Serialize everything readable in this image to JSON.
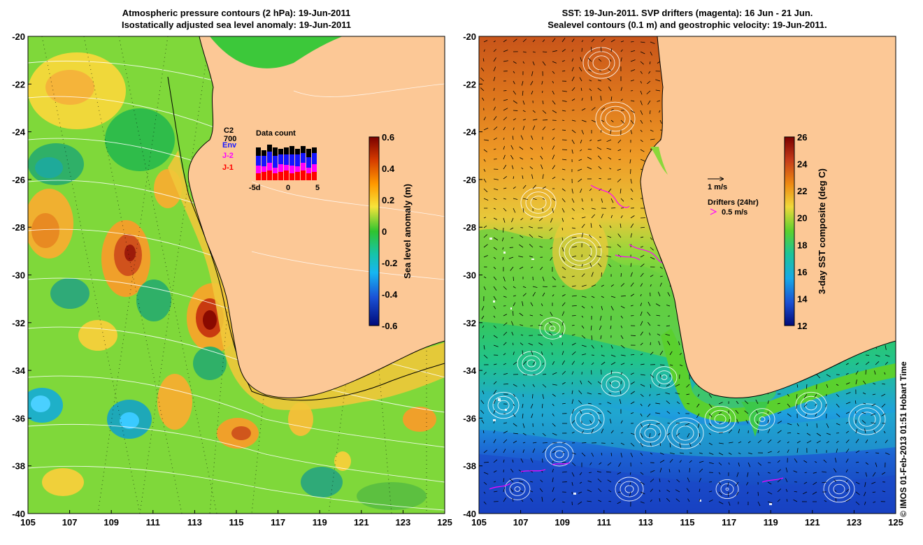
{
  "left_panel": {
    "title_line1": "Atmospheric pressure contours (2 hPa): 19-Jun-2011",
    "title_line2": "Isostatically adjusted sea level anomaly: 19-Jun-2011",
    "y_ticks": [
      "-20",
      "-22",
      "-24",
      "-26",
      "-28",
      "-30",
      "-32",
      "-34",
      "-36",
      "-38",
      "-40"
    ],
    "x_ticks": [
      "105",
      "107",
      "109",
      "111",
      "113",
      "115",
      "117",
      "119",
      "121",
      "123",
      "125"
    ],
    "colorbar_label": "Sea level anomaly (m)",
    "colorbar_ticks": [
      "0.6",
      "0.4",
      "0.2",
      "0",
      "-0.2",
      "-0.4",
      "-0.6"
    ],
    "legend": {
      "items": [
        {
          "label": "C2",
          "color": "#000000"
        },
        {
          "label": "700",
          "color": "#000000"
        },
        {
          "label": "Env",
          "color": "#1a1aff"
        },
        {
          "label": "J-2",
          "color": "#ff00ff"
        },
        {
          "label": "J-1",
          "color": "#ff0000"
        }
      ],
      "data_count_title": "Data count",
      "data_count_ticks": [
        "-5d",
        "0",
        "5"
      ],
      "colors": {
        "c2": "#000000",
        "env": "#1414ff",
        "j2": "#ff00ff",
        "j1": "#ff0000"
      }
    }
  },
  "right_panel": {
    "title_line1": "SST: 19-Jun-2011. SVP drifters (magenta): 16 Jun - 21 Jun.",
    "title_line2": "Sealevel contours (0.1 m) and geostrophic velocity: 19-Jun-2011.",
    "y_ticks": [
      "-20",
      "-22",
      "-24",
      "-26",
      "-28",
      "-30",
      "-32",
      "-34",
      "-36",
      "-38",
      "-40"
    ],
    "x_ticks": [
      "105",
      "107",
      "109",
      "111",
      "113",
      "115",
      "117",
      "119",
      "121",
      "123",
      "125"
    ],
    "colorbar_label": "3-day SST composite (deg C)",
    "colorbar_ticks": [
      "26",
      "24",
      "22",
      "20",
      "18",
      "16",
      "14",
      "12"
    ],
    "velocity_scale_label": "1 m/s",
    "drifters_label": "Drifters (24hr)",
    "drifters_scale_label": "0.5 m/s",
    "drifter_color": "#ff00ff"
  },
  "credit": "© IMOS 01-Feb-2013 01:51 Hobart Time",
  "colors": {
    "land": "#fcc896",
    "coast": "#000000",
    "frame": "#000000"
  }
}
